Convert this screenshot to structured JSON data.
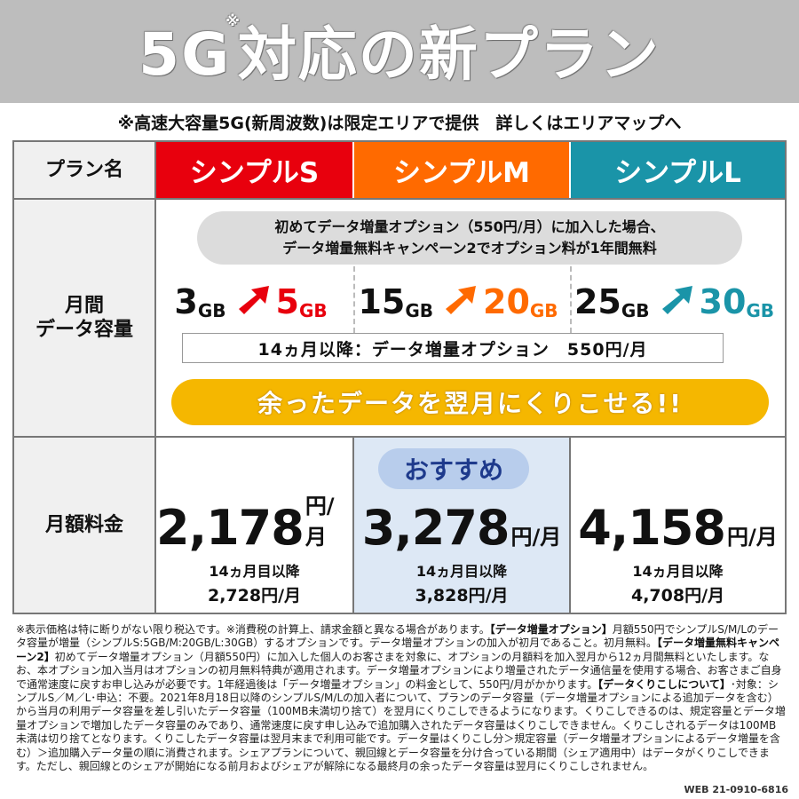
{
  "header": {
    "title_main": "5G",
    "title_note": "※",
    "title_rest": "対応の新プラン",
    "subline": "※高速大容量5G(新周波数)は限定エリアで提供　詳しくはエリアマップへ"
  },
  "table": {
    "row_plan_label": "プラン名",
    "row_capacity_label_1": "月間",
    "row_capacity_label_2": "データ容量",
    "row_price_label": "月額料金",
    "plans": [
      {
        "name": "シンプルS",
        "color": "#e8000d",
        "cap_before": "3",
        "cap_after": "5",
        "unit": "GB",
        "price": "2,178",
        "price_unit": "円/月",
        "after_label": "14ヵ月目以降",
        "after_price": "2,728円/月"
      },
      {
        "name": "シンプルM",
        "color": "#ff6a00",
        "cap_before": "15",
        "cap_after": "20",
        "unit": "GB",
        "price": "3,278",
        "price_unit": "円/月",
        "after_label": "14ヵ月目以降",
        "after_price": "3,828円/月"
      },
      {
        "name": "シンプルL",
        "color": "#1a94a8",
        "cap_before": "25",
        "cap_after": "30",
        "unit": "GB",
        "price": "4,158",
        "price_unit": "円/月",
        "after_label": "14ヵ月目以降",
        "after_price": "4,708円/月"
      }
    ],
    "campaign_line1": "初めてデータ増量オプション（550円/月）に加入した場合、",
    "campaign_line2": "データ増量無料キャンペーン2でオプション料が1年間無料",
    "after14": "14ヵ月以降：データ増量オプション　550円/月",
    "rollover": "余ったデータを翌月にくりこせる!!",
    "recommend": "おすすめ"
  },
  "footnote": {
    "p1": "※表示価格は特に断りがない限り税込です。※消費税の計算上、請求金額と異なる場合があります。",
    "b1": "【データ増量オプション】",
    "p2": "月額550円でシンプルS/M/Lのデータ容量が増量（シンプルS:5GB/M:20GB/L:30GB）するオプションです。データ増量オプションの加入が初月であること。初月無料。",
    "b2": "【データ増量無料キャンペーン2】",
    "p3": "初めてデータ増量オプション（月額550円）に加入した個人のお客さまを対象に、オプションの月額料を加入翌月から12ヵ月間無料といたします。なお、本オプション加入当月はオプションの初月無料特典が適用されます。データ増量オプションにより増量されたデータ通信量を使用する場合、お客さまご自身で通常速度に戻すお申し込みが必要です。1年経過後は「データ増量オプション」の料金として、550円/月がかかります。",
    "b3": "【データくりこしについて】",
    "p4": "･対象：シンプルS／M／L･申込：不要。2021年8月18日以降のシンプルS/M/Lの加入者について、プランのデータ容量（データ増量オプションによる追加データを含む）から当月の利用データ容量を差し引いたデータ容量（100MB未満切り捨て）を翌月にくりこしできるようになります。くりこしできるのは、規定容量とデータ増量オプションで増加したデータ容量のみであり、通常速度に戻す申し込みで追加購入されたデータ容量はくりこしできません。くりこしされるデータは100MB未満は切り捨てとなります。くりこしたデータ容量は翌月末まで利用可能です。データ量はくりこし分＞規定容量（データ増量オプションによるデータ増量を含む）＞追加購入データ量の順に消費されます。シェアプランについて、親回線とデータ容量を分け合っている期間（シェア適用中）はデータがくりこしできます。ただし、親回線とのシェアが開始になる前月およびシェアが解除になる最終月の余ったデータ容量は翌月にくりこしされません。",
    "webcode": "WEB 21-0910-6816"
  }
}
